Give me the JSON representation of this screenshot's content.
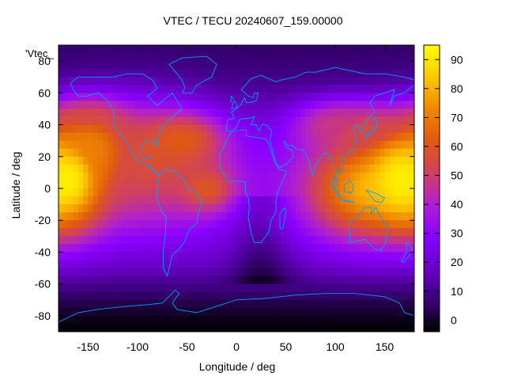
{
  "chart_data": {
    "type": "heatmap",
    "title": "VTEC / TECU 20240607_159.00000",
    "xlabel": "Longitude / deg",
    "ylabel": "Latitude / deg",
    "series_key": "'Vtec_",
    "xlim": [
      -180,
      180
    ],
    "ylim": [
      -90,
      90
    ],
    "x_ticks": [
      -150,
      -100,
      -50,
      0,
      50,
      100,
      150
    ],
    "y_ticks": [
      -80,
      -60,
      -40,
      -20,
      0,
      20,
      40,
      60,
      80
    ],
    "colorbar": {
      "range": [
        -4,
        95
      ],
      "ticks": [
        0,
        10,
        20,
        30,
        40,
        50,
        60,
        70,
        80,
        90
      ],
      "colormap": [
        "#000000",
        "#3a0078",
        "#6a00c8",
        "#8a00ff",
        "#b020d0",
        "#d04060",
        "#e05a10",
        "#f08800",
        "#ffc800",
        "#ffff00"
      ]
    },
    "grid": false,
    "legend_position": "right",
    "coastline_color": "#00a0ff",
    "tec_features": [
      {
        "lon": -170,
        "lat": 5,
        "peak": 92,
        "lonw": 28,
        "latw": 22
      },
      {
        "lon": -145,
        "lat": 25,
        "peak": 70,
        "lonw": 30,
        "latw": 18
      },
      {
        "lon": -150,
        "lat": 40,
        "peak": 55,
        "lonw": 25,
        "latw": 10
      },
      {
        "lon": -90,
        "lat": 15,
        "peak": 55,
        "lonw": 45,
        "latw": 25
      },
      {
        "lon": -55,
        "lat": 30,
        "peak": 62,
        "lonw": 30,
        "latw": 12
      },
      {
        "lon": -30,
        "lat": 0,
        "peak": 60,
        "lonw": 20,
        "latw": 10
      },
      {
        "lon": 130,
        "lat": 0,
        "peak": 78,
        "lonw": 40,
        "latw": 22
      },
      {
        "lon": 165,
        "lat": 5,
        "peak": 92,
        "lonw": 20,
        "latw": 16
      },
      {
        "lon": 135,
        "lat": 35,
        "peak": 55,
        "lonw": 35,
        "latw": 12
      },
      {
        "lon": 100,
        "lat": 40,
        "peak": 48,
        "lonw": 30,
        "latw": 10
      }
    ],
    "tec_background": {
      "equator": 30,
      "poles": 6
    }
  }
}
